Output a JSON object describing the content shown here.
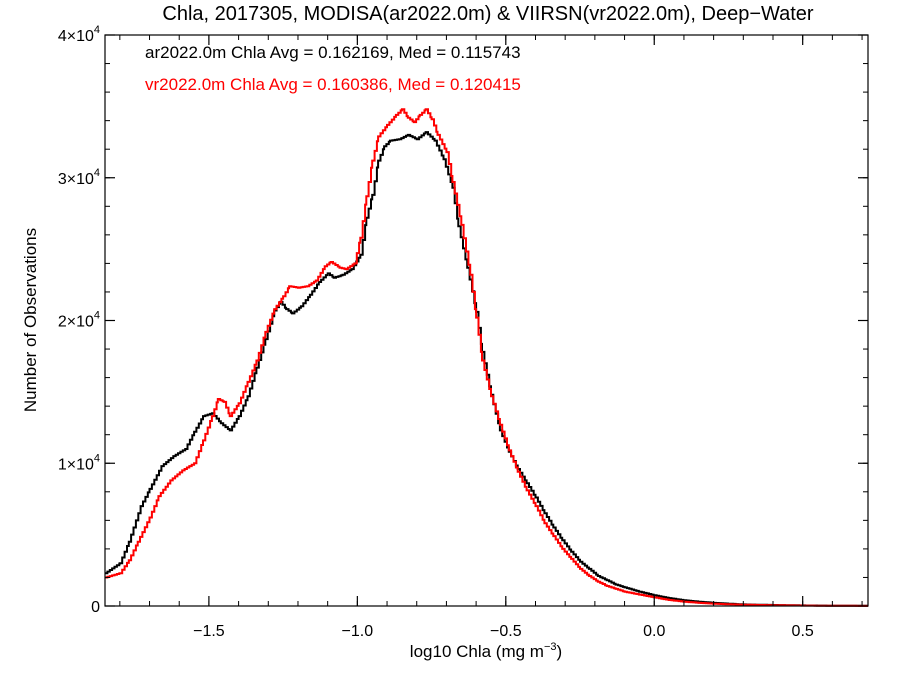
{
  "chart_data": {
    "type": "line",
    "title": "Chla, 2017305, MODISA(ar2022.0m) & VIIRSN(vr2022.0m), Deep−Water",
    "xlabel": {
      "base": "log10 Chla (mg m",
      "sup": "−3",
      "tail": ")"
    },
    "ylabel": "Number of Observations",
    "xlim": [
      -1.85,
      0.72
    ],
    "ylim": [
      0,
      40000
    ],
    "x_ticks": [
      {
        "value": -1.5,
        "label": "−1.5"
      },
      {
        "value": -1.0,
        "label": "−1.0"
      },
      {
        "value": -0.5,
        "label": "−0.5"
      },
      {
        "value": 0.0,
        "label": "0.0"
      },
      {
        "value": 0.5,
        "label": "0.5"
      }
    ],
    "y_ticks": [
      {
        "value": 0,
        "mant": "0",
        "exp": ""
      },
      {
        "value": 10000,
        "mant": "1×10",
        "exp": "4"
      },
      {
        "value": 20000,
        "mant": "2×10",
        "exp": "4"
      },
      {
        "value": 30000,
        "mant": "3×10",
        "exp": "4"
      },
      {
        "value": 40000,
        "mant": "4×10",
        "exp": "4"
      }
    ],
    "annotations": [
      {
        "text": "ar2022.0m Chla Avg = 0.162169, Med = 0.115743",
        "color": "#000000"
      },
      {
        "text": "vr2022.0m Chla Avg = 0.160386, Med = 0.120415",
        "color": "#ff0000"
      }
    ],
    "grid": false,
    "series": [
      {
        "color": "#000000",
        "points": [
          [
            -1.85,
            2300
          ],
          [
            -1.8,
            3000
          ],
          [
            -1.77,
            4500
          ],
          [
            -1.73,
            7000
          ],
          [
            -1.7,
            8200
          ],
          [
            -1.66,
            9800
          ],
          [
            -1.62,
            10500
          ],
          [
            -1.58,
            11000
          ],
          [
            -1.55,
            12200
          ],
          [
            -1.52,
            13300
          ],
          [
            -1.49,
            13500
          ],
          [
            -1.46,
            12800
          ],
          [
            -1.43,
            12300
          ],
          [
            -1.4,
            13300
          ],
          [
            -1.37,
            14700
          ],
          [
            -1.34,
            16700
          ],
          [
            -1.31,
            18700
          ],
          [
            -1.28,
            20700
          ],
          [
            -1.26,
            21300
          ],
          [
            -1.24,
            20800
          ],
          [
            -1.22,
            20500
          ],
          [
            -1.19,
            21000
          ],
          [
            -1.16,
            21800
          ],
          [
            -1.13,
            22700
          ],
          [
            -1.1,
            23300
          ],
          [
            -1.08,
            23000
          ],
          [
            -1.05,
            23200
          ],
          [
            -1.02,
            23600
          ],
          [
            -0.99,
            24600
          ],
          [
            -0.97,
            27200
          ],
          [
            -0.95,
            28800
          ],
          [
            -0.93,
            31200
          ],
          [
            -0.91,
            32200
          ],
          [
            -0.89,
            32600
          ],
          [
            -0.86,
            32700
          ],
          [
            -0.83,
            33000
          ],
          [
            -0.8,
            32700
          ],
          [
            -0.77,
            33200
          ],
          [
            -0.74,
            32600
          ],
          [
            -0.71,
            31300
          ],
          [
            -0.68,
            29300
          ],
          [
            -0.66,
            26600
          ],
          [
            -0.63,
            23700
          ],
          [
            -0.6,
            20600
          ],
          [
            -0.58,
            17800
          ],
          [
            -0.55,
            14800
          ],
          [
            -0.52,
            12300
          ],
          [
            -0.49,
            10800
          ],
          [
            -0.46,
            9600
          ],
          [
            -0.43,
            8600
          ],
          [
            -0.4,
            7600
          ],
          [
            -0.37,
            6500
          ],
          [
            -0.34,
            5500
          ],
          [
            -0.31,
            4600
          ],
          [
            -0.28,
            3800
          ],
          [
            -0.25,
            3100
          ],
          [
            -0.22,
            2600
          ],
          [
            -0.19,
            2100
          ],
          [
            -0.16,
            1800
          ],
          [
            -0.13,
            1500
          ],
          [
            -0.1,
            1300
          ],
          [
            -0.05,
            1000
          ],
          [
            0.0,
            750
          ],
          [
            0.05,
            550
          ],
          [
            0.1,
            400
          ],
          [
            0.15,
            300
          ],
          [
            0.2,
            220
          ],
          [
            0.25,
            160
          ],
          [
            0.3,
            110
          ],
          [
            0.4,
            70
          ],
          [
            0.5,
            40
          ],
          [
            0.6,
            20
          ],
          [
            0.72,
            10
          ]
        ]
      },
      {
        "color": "#ff0000",
        "points": [
          [
            -1.85,
            2000
          ],
          [
            -1.8,
            2300
          ],
          [
            -1.77,
            3200
          ],
          [
            -1.74,
            4500
          ],
          [
            -1.7,
            6200
          ],
          [
            -1.67,
            7700
          ],
          [
            -1.63,
            8800
          ],
          [
            -1.59,
            9500
          ],
          [
            -1.55,
            10000
          ],
          [
            -1.52,
            11600
          ],
          [
            -1.49,
            13300
          ],
          [
            -1.47,
            14500
          ],
          [
            -1.45,
            14300
          ],
          [
            -1.43,
            13300
          ],
          [
            -1.4,
            14200
          ],
          [
            -1.37,
            15700
          ],
          [
            -1.34,
            17200
          ],
          [
            -1.31,
            19200
          ],
          [
            -1.28,
            20800
          ],
          [
            -1.25,
            21700
          ],
          [
            -1.23,
            22400
          ],
          [
            -1.2,
            22300
          ],
          [
            -1.17,
            22400
          ],
          [
            -1.14,
            22800
          ],
          [
            -1.11,
            23800
          ],
          [
            -1.09,
            24100
          ],
          [
            -1.06,
            23700
          ],
          [
            -1.04,
            23600
          ],
          [
            -1.01,
            24000
          ],
          [
            -0.99,
            25800
          ],
          [
            -0.97,
            28700
          ],
          [
            -0.95,
            31200
          ],
          [
            -0.93,
            32900
          ],
          [
            -0.9,
            33700
          ],
          [
            -0.87,
            34400
          ],
          [
            -0.85,
            34800
          ],
          [
            -0.83,
            34200
          ],
          [
            -0.81,
            33900
          ],
          [
            -0.79,
            34400
          ],
          [
            -0.77,
            34800
          ],
          [
            -0.75,
            34100
          ],
          [
            -0.73,
            33000
          ],
          [
            -0.7,
            31800
          ],
          [
            -0.68,
            29700
          ],
          [
            -0.65,
            26700
          ],
          [
            -0.62,
            23200
          ],
          [
            -0.6,
            20200
          ],
          [
            -0.58,
            17200
          ],
          [
            -0.55,
            14700
          ],
          [
            -0.52,
            12700
          ],
          [
            -0.49,
            10900
          ],
          [
            -0.46,
            9400
          ],
          [
            -0.43,
            8100
          ],
          [
            -0.4,
            7000
          ],
          [
            -0.37,
            5800
          ],
          [
            -0.34,
            4900
          ],
          [
            -0.31,
            4000
          ],
          [
            -0.28,
            3300
          ],
          [
            -0.25,
            2600
          ],
          [
            -0.22,
            2100
          ],
          [
            -0.19,
            1700
          ],
          [
            -0.16,
            1400
          ],
          [
            -0.13,
            1200
          ],
          [
            -0.1,
            1000
          ],
          [
            -0.05,
            800
          ],
          [
            0.0,
            600
          ],
          [
            0.05,
            420
          ],
          [
            0.1,
            300
          ],
          [
            0.15,
            220
          ],
          [
            0.2,
            160
          ],
          [
            0.25,
            120
          ],
          [
            0.3,
            90
          ],
          [
            0.4,
            55
          ],
          [
            0.5,
            30
          ],
          [
            0.6,
            15
          ],
          [
            0.72,
            8
          ]
        ]
      }
    ]
  }
}
